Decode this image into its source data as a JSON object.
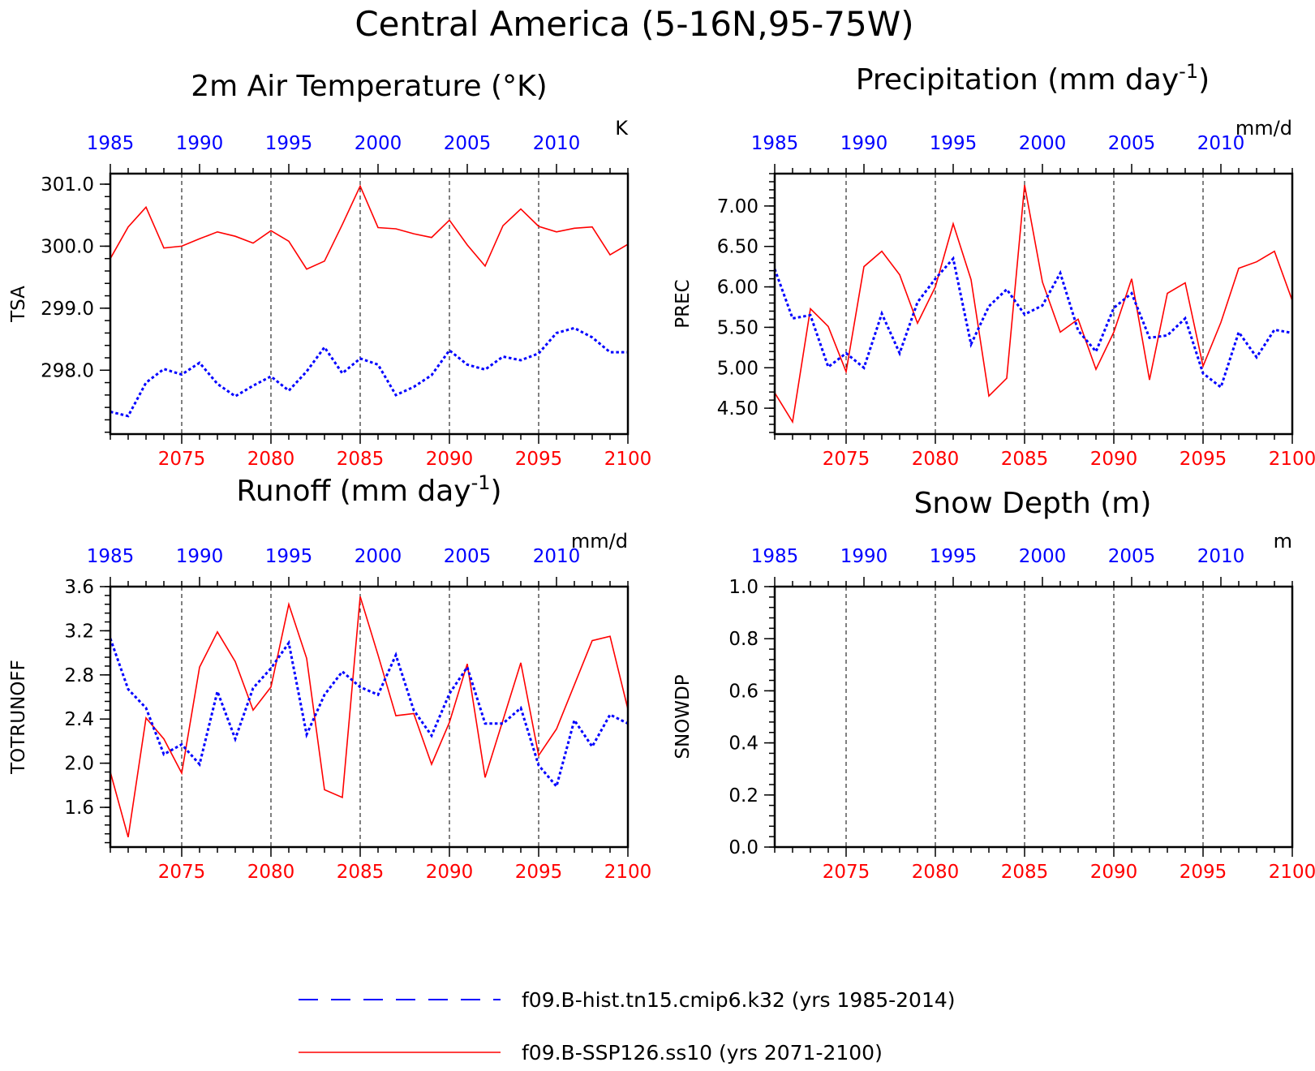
{
  "main_title": "Central America (5-16N,95-75W)",
  "legend": [
    {
      "label": "f09.B-hist.tn15.cmip6.k32 (yrs 1985-2014)",
      "color": "#0000ff",
      "style": "dashed"
    },
    {
      "label": "f09.B-SSP126.ss10 (yrs 2071-2100)",
      "color": "#ff0000",
      "style": "solid"
    }
  ],
  "colors": {
    "hist": "#0000ff",
    "ssp": "#ff0000",
    "axis": "#000000"
  },
  "chart_data": [
    {
      "type": "line",
      "title": "2m Air Temperature (°K)",
      "ylabel": "TSA",
      "units": "K",
      "x_top": {
        "range": [
          1985,
          2014
        ],
        "ticks": [
          1985,
          1990,
          1995,
          2000,
          2005,
          2010
        ]
      },
      "x_bottom": {
        "range": [
          2071,
          2100
        ],
        "ticks": [
          2075,
          2080,
          2085,
          2090,
          2095,
          2100
        ]
      },
      "ylim": [
        296.97,
        301.17
      ],
      "yticks": [
        298.0,
        299.0,
        300.0,
        301.0
      ],
      "ytick_labels": [
        "298.0",
        "299.0",
        "300.0",
        "301.0"
      ],
      "yminor_step": 0.2,
      "series": [
        {
          "name": "f09.B-hist.tn15.cmip6.k32 (yrs 1985-2014)",
          "values": [
            297.33,
            297.26,
            297.8,
            298.02,
            297.93,
            298.12,
            297.78,
            297.58,
            297.75,
            297.9,
            297.67,
            297.98,
            298.37,
            297.95,
            298.19,
            298.09,
            297.6,
            297.73,
            297.92,
            298.32,
            298.09,
            298.01,
            298.22,
            298.16,
            298.27,
            298.6,
            298.68,
            298.53,
            298.29,
            298.29
          ]
        },
        {
          "name": "f09.B-SSP126.ss10 (yrs 2071-2100)",
          "values": [
            299.8,
            300.31,
            300.63,
            299.97,
            300.0,
            300.12,
            300.23,
            300.16,
            300.05,
            300.25,
            300.08,
            299.63,
            299.76,
            300.35,
            300.97,
            300.3,
            300.28,
            300.2,
            300.14,
            300.42,
            300.02,
            299.68,
            300.33,
            300.6,
            300.32,
            300.23,
            300.29,
            300.31,
            299.86,
            300.03
          ]
        }
      ]
    },
    {
      "type": "line",
      "title": "Precipitation (mm day",
      "title_sup": "-1",
      "title_end": ")",
      "ylabel": "PREC",
      "units": "mm/d",
      "x_top": {
        "range": [
          1985,
          2014
        ],
        "ticks": [
          1985,
          1990,
          1995,
          2000,
          2005,
          2010
        ]
      },
      "x_bottom": {
        "range": [
          2071,
          2100
        ],
        "ticks": [
          2075,
          2080,
          2085,
          2090,
          2095,
          2100
        ]
      },
      "ylim": [
        4.18,
        7.4
      ],
      "yticks": [
        4.5,
        5.0,
        5.5,
        6.0,
        6.5,
        7.0
      ],
      "ytick_labels": [
        "4.50",
        "5.00",
        "5.50",
        "6.00",
        "6.50",
        "7.00"
      ],
      "yminor_step": 0.1,
      "series": [
        {
          "name": "f09.B-hist.tn15.cmip6.k32 (yrs 1985-2014)",
          "values": [
            6.22,
            5.61,
            5.65,
            5.01,
            5.18,
            5.0,
            5.67,
            5.18,
            5.81,
            6.1,
            6.35,
            5.29,
            5.76,
            5.97,
            5.66,
            5.77,
            6.17,
            5.46,
            5.2,
            5.74,
            5.92,
            5.37,
            5.4,
            5.61,
            4.93,
            4.76,
            5.44,
            5.13,
            5.47,
            5.43
          ]
        },
        {
          "name": "f09.B-SSP126.ss10 (yrs 2071-2100)",
          "values": [
            4.69,
            4.33,
            5.73,
            5.51,
            4.95,
            6.25,
            6.44,
            6.15,
            5.55,
            6.0,
            6.78,
            6.09,
            4.65,
            4.87,
            7.26,
            6.06,
            5.44,
            5.6,
            4.98,
            5.44,
            6.1,
            4.85,
            5.92,
            6.05,
            5.02,
            5.56,
            6.23,
            6.31,
            6.44,
            5.83
          ]
        }
      ]
    },
    {
      "type": "line",
      "title": "Runoff (mm day",
      "title_sup": "-1",
      "title_end": ")",
      "ylabel": "TOTRUNOFF",
      "units": "mm/d",
      "x_top": {
        "range": [
          1985,
          2014
        ],
        "ticks": [
          1985,
          1990,
          1995,
          2000,
          2005,
          2010
        ]
      },
      "x_bottom": {
        "range": [
          2071,
          2100
        ],
        "ticks": [
          2075,
          2080,
          2085,
          2090,
          2095,
          2100
        ]
      },
      "ylim": [
        1.24,
        3.6
      ],
      "yticks": [
        1.6,
        2.0,
        2.4,
        2.8,
        3.2,
        3.6
      ],
      "ytick_labels": [
        "1.6",
        "2.0",
        "2.4",
        "2.8",
        "3.2",
        "3.6"
      ],
      "yminor_step": 0.08,
      "series": [
        {
          "name": "f09.B-hist.tn15.cmip6.k32 (yrs 1985-2014)",
          "values": [
            3.13,
            2.67,
            2.5,
            2.08,
            2.17,
            1.99,
            2.65,
            2.22,
            2.68,
            2.86,
            3.09,
            2.26,
            2.62,
            2.83,
            2.69,
            2.62,
            2.98,
            2.48,
            2.25,
            2.63,
            2.87,
            2.36,
            2.36,
            2.5,
            1.98,
            1.79,
            2.39,
            2.15,
            2.44,
            2.36
          ]
        },
        {
          "name": "f09.B-SSP126.ss10 (yrs 2071-2100)",
          "values": [
            1.92,
            1.33,
            2.41,
            2.22,
            1.91,
            2.87,
            3.19,
            2.92,
            2.48,
            2.69,
            3.44,
            2.95,
            1.76,
            1.69,
            3.51,
            2.98,
            2.43,
            2.45,
            1.99,
            2.37,
            2.9,
            1.87,
            2.39,
            2.91,
            2.07,
            2.31,
            2.71,
            3.11,
            3.15,
            2.49
          ]
        }
      ]
    },
    {
      "type": "line",
      "title": "Snow Depth (m)",
      "ylabel": "SNOWDP",
      "units": "m",
      "x_top": {
        "range": [
          1985,
          2014
        ],
        "ticks": [
          1985,
          1990,
          1995,
          2000,
          2005,
          2010
        ]
      },
      "x_bottom": {
        "range": [
          2071,
          2100
        ],
        "ticks": [
          2075,
          2080,
          2085,
          2090,
          2095,
          2100
        ]
      },
      "ylim": [
        0.0,
        1.0
      ],
      "yticks": [
        0.0,
        0.2,
        0.4,
        0.6,
        0.8,
        1.0
      ],
      "ytick_labels": [
        "0.0",
        "0.2",
        "0.4",
        "0.6",
        "0.8",
        "1.0"
      ],
      "yminor_step": 0.04,
      "series": []
    }
  ]
}
